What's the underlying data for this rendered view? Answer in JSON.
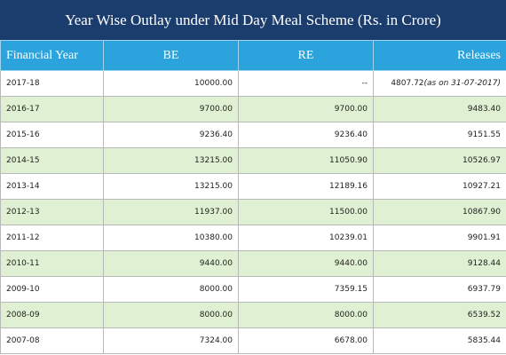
{
  "header": {
    "title": "Year Wise Outlay under Mid Day Meal Scheme (Rs. in Crore)"
  },
  "table": {
    "columns": [
      "Financial Year",
      "BE",
      "RE",
      "Releases"
    ],
    "rows": [
      [
        "2017-18",
        "10000.00",
        "--",
        "4807.72"
      ],
      [
        "2016-17",
        "9700.00",
        "9700.00",
        "9483.40"
      ],
      [
        "2015-16",
        "9236.40",
        "9236.40",
        "9151.55"
      ],
      [
        "2014-15",
        "13215.00",
        "11050.90",
        "10526.97"
      ],
      [
        "2013-14",
        "13215.00",
        "12189.16",
        "10927.21"
      ],
      [
        "2012-13",
        "11937.00",
        "11500.00",
        "10867.90"
      ],
      [
        "2011-12",
        "10380.00",
        "10239.01",
        "9901.91"
      ],
      [
        "2010-11",
        "9440.00",
        "9440.00",
        "9128.44"
      ],
      [
        "2009-10",
        "8000.00",
        "7359.15",
        "6937.79"
      ],
      [
        "2008-09",
        "8000.00",
        "8000.00",
        "6539.52"
      ],
      [
        "2007-08",
        "7324.00",
        "6678.00",
        "5835.44"
      ]
    ],
    "notes": {
      "0": "(as on 31-07-2017)"
    }
  }
}
